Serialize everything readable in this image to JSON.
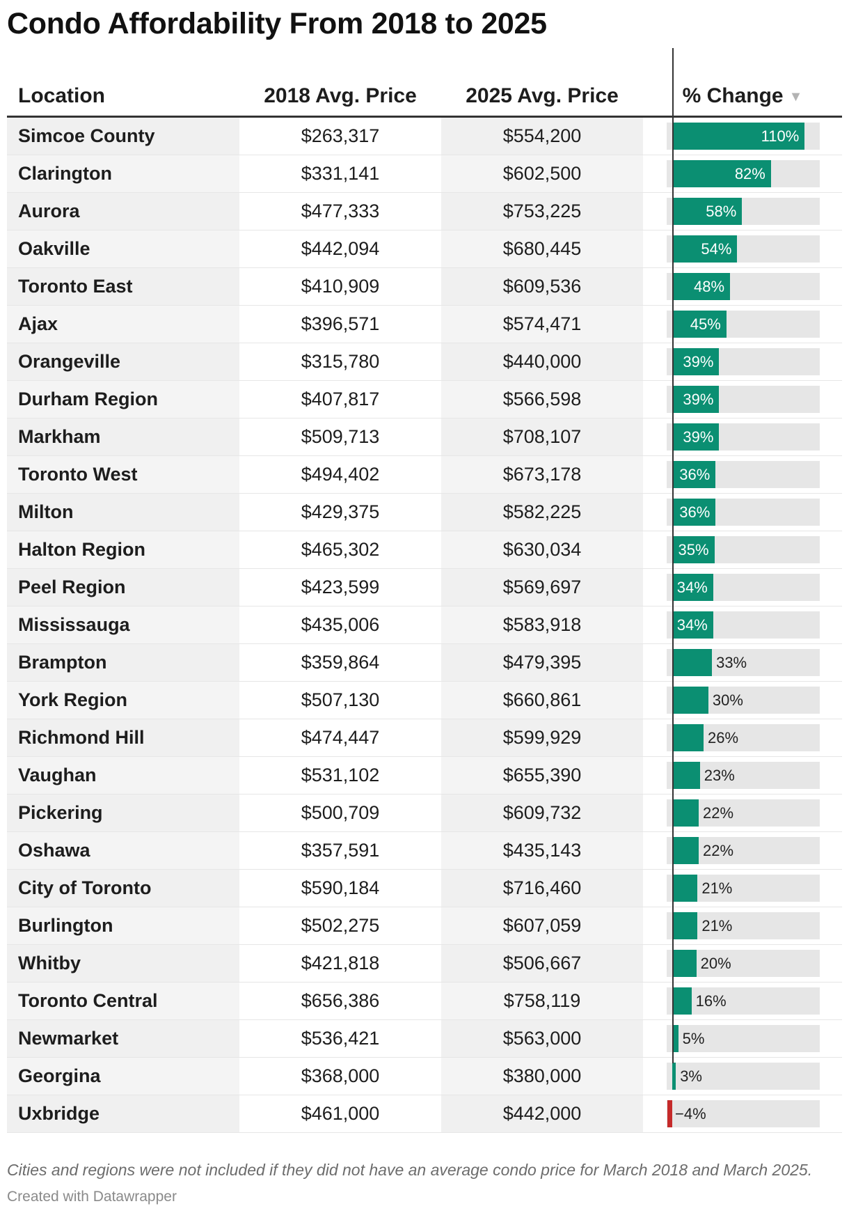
{
  "title": "Condo Affordability From 2018 to 2025",
  "columns": {
    "location": "Location",
    "price_2018": "2018 Avg. Price",
    "price_2025": "2025 Avg. Price",
    "change": "% Change",
    "sort_icon": "sort-descending-triangle"
  },
  "colors": {
    "positive": "#0b8f72",
    "negative": "#c52a2a",
    "track": "#e6e6e6"
  },
  "notes": "Cities and regions were not included if they did not have an average condo price for March 2018 and March 2025.",
  "credit": "Created with Datawrapper",
  "chart_data": {
    "type": "table",
    "title": "Condo Affordability From 2018 to 2025",
    "bar_range": [
      -4,
      110
    ],
    "rows": [
      {
        "location": "Simcoe County",
        "price_2018": "$263,317",
        "price_2025": "$554,200",
        "change": 110,
        "change_label": "110%"
      },
      {
        "location": "Clarington",
        "price_2018": "$331,141",
        "price_2025": "$602,500",
        "change": 82,
        "change_label": "82%"
      },
      {
        "location": "Aurora",
        "price_2018": "$477,333",
        "price_2025": "$753,225",
        "change": 58,
        "change_label": "58%"
      },
      {
        "location": "Oakville",
        "price_2018": "$442,094",
        "price_2025": "$680,445",
        "change": 54,
        "change_label": "54%"
      },
      {
        "location": "Toronto East",
        "price_2018": "$410,909",
        "price_2025": "$609,536",
        "change": 48,
        "change_label": "48%"
      },
      {
        "location": "Ajax",
        "price_2018": "$396,571",
        "price_2025": "$574,471",
        "change": 45,
        "change_label": "45%"
      },
      {
        "location": "Orangeville",
        "price_2018": "$315,780",
        "price_2025": "$440,000",
        "change": 39,
        "change_label": "39%"
      },
      {
        "location": "Durham Region",
        "price_2018": "$407,817",
        "price_2025": "$566,598",
        "change": 39,
        "change_label": "39%"
      },
      {
        "location": "Markham",
        "price_2018": "$509,713",
        "price_2025": "$708,107",
        "change": 39,
        "change_label": "39%"
      },
      {
        "location": "Toronto West",
        "price_2018": "$494,402",
        "price_2025": "$673,178",
        "change": 36,
        "change_label": "36%"
      },
      {
        "location": "Milton",
        "price_2018": "$429,375",
        "price_2025": "$582,225",
        "change": 36,
        "change_label": "36%"
      },
      {
        "location": "Halton Region",
        "price_2018": "$465,302",
        "price_2025": "$630,034",
        "change": 35,
        "change_label": "35%"
      },
      {
        "location": "Peel Region",
        "price_2018": "$423,599",
        "price_2025": "$569,697",
        "change": 34,
        "change_label": "34%"
      },
      {
        "location": "Mississauga",
        "price_2018": "$435,006",
        "price_2025": "$583,918",
        "change": 34,
        "change_label": "34%"
      },
      {
        "location": "Brampton",
        "price_2018": "$359,864",
        "price_2025": "$479,395",
        "change": 33,
        "change_label": "33%"
      },
      {
        "location": "York Region",
        "price_2018": "$507,130",
        "price_2025": "$660,861",
        "change": 30,
        "change_label": "30%"
      },
      {
        "location": "Richmond Hill",
        "price_2018": "$474,447",
        "price_2025": "$599,929",
        "change": 26,
        "change_label": "26%"
      },
      {
        "location": "Vaughan",
        "price_2018": "$531,102",
        "price_2025": "$655,390",
        "change": 23,
        "change_label": "23%"
      },
      {
        "location": "Pickering",
        "price_2018": "$500,709",
        "price_2025": "$609,732",
        "change": 22,
        "change_label": "22%"
      },
      {
        "location": "Oshawa",
        "price_2018": "$357,591",
        "price_2025": "$435,143",
        "change": 22,
        "change_label": "22%"
      },
      {
        "location": "City of Toronto",
        "price_2018": "$590,184",
        "price_2025": "$716,460",
        "change": 21,
        "change_label": "21%"
      },
      {
        "location": "Burlington",
        "price_2018": "$502,275",
        "price_2025": "$607,059",
        "change": 21,
        "change_label": "21%"
      },
      {
        "location": "Whitby",
        "price_2018": "$421,818",
        "price_2025": "$506,667",
        "change": 20,
        "change_label": "20%"
      },
      {
        "location": "Toronto Central",
        "price_2018": "$656,386",
        "price_2025": "$758,119",
        "change": 16,
        "change_label": "16%"
      },
      {
        "location": "Newmarket",
        "price_2018": "$536,421",
        "price_2025": "$563,000",
        "change": 5,
        "change_label": "5%"
      },
      {
        "location": "Georgina",
        "price_2018": "$368,000",
        "price_2025": "$380,000",
        "change": 3,
        "change_label": "3%"
      },
      {
        "location": "Uxbridge",
        "price_2018": "$461,000",
        "price_2025": "$442,000",
        "change": -4,
        "change_label": "−4%"
      }
    ]
  }
}
